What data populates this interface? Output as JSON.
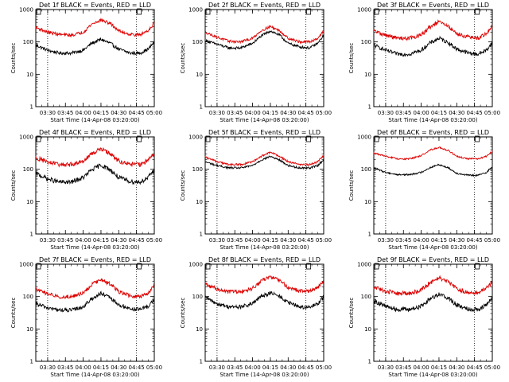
{
  "chart_data": [
    {
      "type": "line",
      "title": "Det 1f BLACK = Events, RED = LLD",
      "xlabel": "Start Time (14-Apr-08 03:20:00)",
      "ylabel": "Counts/sec",
      "yscale": "log",
      "ylim": [
        1,
        1000
      ],
      "xlim_min": [
        0,
        100
      ],
      "x_tick_labels": [
        "03:30",
        "03:45",
        "04:00",
        "04:15",
        "04:30",
        "04:45",
        "05:00"
      ],
      "x_tick_min": [
        10,
        25,
        40,
        55,
        70,
        85,
        100
      ],
      "y_tick_labels": [
        "1",
        "10",
        "100",
        "1000"
      ],
      "y_ticks": [
        1,
        10,
        100,
        1000
      ],
      "vlines_min": [
        10,
        85,
        100
      ],
      "markers": [
        {
          "x_min": 0,
          "y": 1000
        },
        {
          "x_min": 85,
          "y": 1000
        }
      ],
      "noise": 0.05,
      "series": [
        {
          "name": "Events",
          "color": "#000000",
          "x_min": [
            0,
            10,
            20,
            30,
            40,
            47,
            55,
            63,
            70,
            80,
            88,
            95,
            100
          ],
          "values": [
            80,
            55,
            45,
            45,
            55,
            90,
            120,
            90,
            60,
            45,
            45,
            60,
            100
          ]
        },
        {
          "name": "LLD",
          "color": "#dd0000",
          "x_min": [
            0,
            10,
            20,
            30,
            40,
            47,
            55,
            63,
            70,
            80,
            88,
            95,
            100
          ],
          "values": [
            280,
            200,
            170,
            160,
            200,
            350,
            480,
            370,
            220,
            170,
            165,
            230,
            380
          ]
        }
      ]
    },
    {
      "type": "line",
      "title": "Det 2f BLACK = Events, RED = LLD",
      "xlabel": "Start Time (14-Apr-08 03:20:00)",
      "ylabel": "Counts/sec",
      "yscale": "log",
      "ylim": [
        1,
        1000
      ],
      "xlim_min": [
        0,
        100
      ],
      "x_tick_labels": [
        "03:30",
        "03:45",
        "04:00",
        "04:15",
        "04:30",
        "04:45",
        "05:00"
      ],
      "x_tick_min": [
        10,
        25,
        40,
        55,
        70,
        85,
        100
      ],
      "y_tick_labels": [
        "1",
        "10",
        "100",
        "1000"
      ],
      "y_ticks": [
        1,
        10,
        100,
        1000
      ],
      "vlines_min": [
        10,
        85,
        100
      ],
      "markers": [
        {
          "x_min": 0,
          "y": 1000
        },
        {
          "x_min": 85,
          "y": 1000
        }
      ],
      "noise": 0.04,
      "series": [
        {
          "name": "Events",
          "color": "#000000",
          "x_min": [
            0,
            10,
            20,
            30,
            40,
            47,
            55,
            63,
            70,
            80,
            88,
            95,
            100
          ],
          "values": [
            110,
            85,
            65,
            65,
            90,
            150,
            220,
            160,
            90,
            70,
            65,
            90,
            160
          ]
        },
        {
          "name": "LLD",
          "color": "#dd0000",
          "x_min": [
            0,
            10,
            20,
            30,
            40,
            47,
            55,
            63,
            70,
            80,
            88,
            95,
            100
          ],
          "values": [
            200,
            140,
            105,
            100,
            130,
            220,
            300,
            220,
            130,
            100,
            100,
            130,
            220
          ]
        }
      ]
    },
    {
      "type": "line",
      "title": "Det 3f BLACK = Events, RED = LLD",
      "xlabel": "Start Time (14-Apr-08 03:20:00)",
      "ylabel": "Counts/sec",
      "yscale": "log",
      "ylim": [
        1,
        1000
      ],
      "xlim_min": [
        0,
        100
      ],
      "x_tick_labels": [
        "03:30",
        "03:45",
        "04:00",
        "04:15",
        "04:30",
        "04:45",
        "05:00"
      ],
      "x_tick_min": [
        10,
        25,
        40,
        55,
        70,
        85,
        100
      ],
      "y_tick_labels": [
        "1",
        "10",
        "100",
        "1000"
      ],
      "y_ticks": [
        1,
        10,
        100,
        1000
      ],
      "vlines_min": [
        10,
        85,
        100
      ],
      "markers": [
        {
          "x_min": 0,
          "y": 1000
        },
        {
          "x_min": 85,
          "y": 1000
        }
      ],
      "noise": 0.06,
      "series": [
        {
          "name": "Events",
          "color": "#000000",
          "x_min": [
            0,
            10,
            20,
            30,
            40,
            47,
            55,
            63,
            70,
            80,
            88,
            95,
            100
          ],
          "values": [
            80,
            55,
            42,
            42,
            55,
            90,
            130,
            95,
            60,
            45,
            42,
            55,
            95
          ]
        },
        {
          "name": "LLD",
          "color": "#dd0000",
          "x_min": [
            0,
            10,
            20,
            30,
            40,
            47,
            55,
            63,
            70,
            80,
            88,
            95,
            100
          ],
          "values": [
            220,
            160,
            130,
            130,
            160,
            280,
            420,
            300,
            180,
            140,
            130,
            180,
            300
          ]
        }
      ]
    },
    {
      "type": "line",
      "title": "Det 4f BLACK = Events, RED = LLD",
      "xlabel": "Start Time (14-Apr-08 03:20:00)",
      "ylabel": "Counts/sec",
      "yscale": "log",
      "ylim": [
        1,
        1000
      ],
      "xlim_min": [
        0,
        100
      ],
      "x_tick_labels": [
        "03:30",
        "03:45",
        "04:00",
        "04:15",
        "04:30",
        "04:45",
        "05:00"
      ],
      "x_tick_min": [
        10,
        25,
        40,
        55,
        70,
        85,
        100
      ],
      "y_tick_labels": [
        "1",
        "10",
        "100",
        "1000"
      ],
      "y_ticks": [
        1,
        10,
        100,
        1000
      ],
      "vlines_min": [
        10,
        85,
        100
      ],
      "markers": [
        {
          "x_min": 0,
          "y": 1000
        },
        {
          "x_min": 85,
          "y": 1000
        }
      ],
      "noise": 0.07,
      "series": [
        {
          "name": "Events",
          "color": "#000000",
          "x_min": [
            0,
            10,
            20,
            30,
            40,
            47,
            55,
            63,
            70,
            80,
            88,
            95,
            100
          ],
          "values": [
            75,
            50,
            40,
            40,
            55,
            95,
            135,
            95,
            55,
            42,
            40,
            55,
            100
          ]
        },
        {
          "name": "LLD",
          "color": "#dd0000",
          "x_min": [
            0,
            10,
            20,
            30,
            40,
            47,
            55,
            63,
            70,
            80,
            88,
            95,
            100
          ],
          "values": [
            230,
            165,
            140,
            140,
            180,
            300,
            430,
            300,
            180,
            140,
            140,
            190,
            310
          ]
        }
      ]
    },
    {
      "type": "line",
      "title": "Det 5f BLACK = Events, RED = LLD",
      "xlabel": "Start Time (14-Apr-08 03:20:00)",
      "ylabel": "Counts/sec",
      "yscale": "log",
      "ylim": [
        1,
        1000
      ],
      "xlim_min": [
        0,
        100
      ],
      "x_tick_labels": [
        "03:30",
        "03:45",
        "04:00",
        "04:15",
        "04:30",
        "04:45",
        "05:00"
      ],
      "x_tick_min": [
        10,
        25,
        40,
        55,
        70,
        85,
        100
      ],
      "y_tick_labels": [
        "1",
        "10",
        "100",
        "1000"
      ],
      "y_ticks": [
        1,
        10,
        100,
        1000
      ],
      "vlines_min": [
        10,
        85,
        100
      ],
      "markers": [
        {
          "x_min": 0,
          "y": 1000
        },
        {
          "x_min": 85,
          "y": 1000
        }
      ],
      "noise": 0.03,
      "series": [
        {
          "name": "Events",
          "color": "#000000",
          "x_min": [
            0,
            10,
            20,
            30,
            40,
            47,
            55,
            63,
            70,
            80,
            88,
            95,
            100
          ],
          "values": [
            170,
            130,
            110,
            110,
            130,
            190,
            250,
            190,
            130,
            110,
            110,
            130,
            200
          ]
        },
        {
          "name": "LLD",
          "color": "#dd0000",
          "x_min": [
            0,
            10,
            20,
            30,
            40,
            47,
            55,
            63,
            70,
            80,
            88,
            95,
            100
          ],
          "values": [
            240,
            170,
            140,
            140,
            170,
            250,
            330,
            250,
            170,
            140,
            140,
            170,
            270
          ]
        }
      ]
    },
    {
      "type": "line",
      "title": "Det 6f BLACK = Events, RED = LLD",
      "xlabel": "Start Time (14-Apr-08 03:20:00)",
      "ylabel": "Counts/sec",
      "yscale": "log",
      "ylim": [
        1,
        1000
      ],
      "xlim_min": [
        0,
        100
      ],
      "x_tick_labels": [
        "03:30",
        "03:45",
        "04:00",
        "04:15",
        "04:30",
        "04:45",
        "05:00"
      ],
      "x_tick_min": [
        10,
        25,
        40,
        55,
        70,
        85,
        100
      ],
      "y_tick_labels": [
        "1",
        "10",
        "100",
        "1000"
      ],
      "y_ticks": [
        1,
        10,
        100,
        1000
      ],
      "vlines_min": [
        10,
        85,
        100
      ],
      "markers": [
        {
          "x_min": 0,
          "y": 1000
        },
        {
          "x_min": 85,
          "y": 1000
        }
      ],
      "noise": 0.025,
      "series": [
        {
          "name": "Events",
          "color": "#000000",
          "x_min": [
            0,
            10,
            20,
            30,
            40,
            47,
            55,
            63,
            70,
            80,
            88,
            95,
            100
          ],
          "values": [
            110,
            80,
            68,
            68,
            80,
            110,
            140,
            110,
            75,
            65,
            65,
            80,
            120
          ]
        },
        {
          "name": "LLD",
          "color": "#dd0000",
          "x_min": [
            0,
            10,
            20,
            30,
            40,
            47,
            55,
            63,
            70,
            80,
            88,
            95,
            100
          ],
          "values": [
            320,
            250,
            210,
            210,
            260,
            390,
            480,
            380,
            250,
            210,
            210,
            250,
            360
          ]
        }
      ]
    },
    {
      "type": "line",
      "title": "Det 7f BLACK = Events, RED = LLD",
      "xlabel": "Start Time (14-Apr-08 03:20:00)",
      "ylabel": "Counts/sec",
      "yscale": "log",
      "ylim": [
        1,
        1000
      ],
      "xlim_min": [
        0,
        100
      ],
      "x_tick_labels": [
        "03:30",
        "03:45",
        "04:00",
        "04:15",
        "04:30",
        "04:45",
        "05:00"
      ],
      "x_tick_min": [
        10,
        25,
        40,
        55,
        70,
        85,
        100
      ],
      "y_tick_labels": [
        "1",
        "10",
        "100",
        "1000"
      ],
      "y_ticks": [
        1,
        10,
        100,
        1000
      ],
      "vlines_min": [
        10,
        85,
        100
      ],
      "markers": [
        {
          "x_min": 0,
          "y": 1000
        },
        {
          "x_min": 85,
          "y": 1000
        }
      ],
      "noise": 0.06,
      "series": [
        {
          "name": "Events",
          "color": "#000000",
          "x_min": [
            0,
            10,
            20,
            30,
            40,
            47,
            55,
            63,
            70,
            80,
            88,
            95,
            100
          ],
          "values": [
            60,
            45,
            38,
            38,
            48,
            85,
            125,
            90,
            55,
            42,
            40,
            50,
            85
          ]
        },
        {
          "name": "LLD",
          "color": "#dd0000",
          "x_min": [
            0,
            10,
            20,
            30,
            40,
            47,
            55,
            63,
            70,
            80,
            88,
            95,
            100
          ],
          "values": [
            170,
            120,
            100,
            100,
            130,
            230,
            340,
            240,
            140,
            105,
            100,
            130,
            230
          ]
        }
      ]
    },
    {
      "type": "line",
      "title": "Det 8f BLACK = Events, RED = LLD",
      "xlabel": "Start Time (14-Apr-08 03:20:00)",
      "ylabel": "Counts/sec",
      "yscale": "log",
      "ylim": [
        1,
        1000
      ],
      "xlim_min": [
        0,
        100
      ],
      "x_tick_labels": [
        "03:30",
        "03:45",
        "04:00",
        "04:15",
        "04:30",
        "04:45",
        "05:00"
      ],
      "x_tick_min": [
        10,
        25,
        40,
        55,
        70,
        85,
        100
      ],
      "y_tick_labels": [
        "1",
        "10",
        "100",
        "1000"
      ],
      "y_ticks": [
        1,
        10,
        100,
        1000
      ],
      "vlines_min": [
        10,
        85,
        100
      ],
      "markers": [
        {
          "x_min": 0,
          "y": 1000
        },
        {
          "x_min": 85,
          "y": 1000
        }
      ],
      "noise": 0.06,
      "series": [
        {
          "name": "Events",
          "color": "#000000",
          "x_min": [
            0,
            10,
            20,
            30,
            40,
            47,
            55,
            63,
            70,
            80,
            88,
            95,
            100
          ],
          "values": [
            95,
            60,
            48,
            48,
            60,
            100,
            130,
            100,
            65,
            48,
            46,
            60,
            100
          ]
        },
        {
          "name": "LLD",
          "color": "#dd0000",
          "x_min": [
            0,
            10,
            20,
            30,
            40,
            47,
            55,
            63,
            70,
            80,
            88,
            95,
            100
          ],
          "values": [
            240,
            170,
            140,
            140,
            180,
            300,
            420,
            310,
            190,
            150,
            150,
            190,
            300
          ]
        }
      ]
    },
    {
      "type": "line",
      "title": "Det 9f BLACK = Events, RED = LLD",
      "xlabel": "Start Time (14-Apr-08 03:20:00)",
      "ylabel": "Counts/sec",
      "yscale": "log",
      "ylim": [
        1,
        1000
      ],
      "xlim_min": [
        0,
        100
      ],
      "x_tick_labels": [
        "03:30",
        "03:45",
        "04:00",
        "04:15",
        "04:30",
        "04:45",
        "05:00"
      ],
      "x_tick_min": [
        10,
        25,
        40,
        55,
        70,
        85,
        100
      ],
      "y_tick_labels": [
        "1",
        "10",
        "100",
        "1000"
      ],
      "y_ticks": [
        1,
        10,
        100,
        1000
      ],
      "vlines_min": [
        10,
        85,
        100
      ],
      "markers": [
        {
          "x_min": 0,
          "y": 1000
        },
        {
          "x_min": 85,
          "y": 1000
        }
      ],
      "noise": 0.07,
      "series": [
        {
          "name": "Events",
          "color": "#000000",
          "x_min": [
            0,
            10,
            20,
            30,
            40,
            47,
            55,
            63,
            70,
            80,
            88,
            95,
            100
          ],
          "values": [
            75,
            50,
            40,
            40,
            50,
            85,
            120,
            90,
            55,
            42,
            40,
            55,
            90
          ]
        },
        {
          "name": "LLD",
          "color": "#dd0000",
          "x_min": [
            0,
            10,
            20,
            30,
            40,
            47,
            55,
            63,
            70,
            80,
            88,
            95,
            100
          ],
          "values": [
            200,
            150,
            125,
            125,
            160,
            260,
            380,
            280,
            170,
            130,
            130,
            180,
            290
          ]
        }
      ]
    }
  ]
}
